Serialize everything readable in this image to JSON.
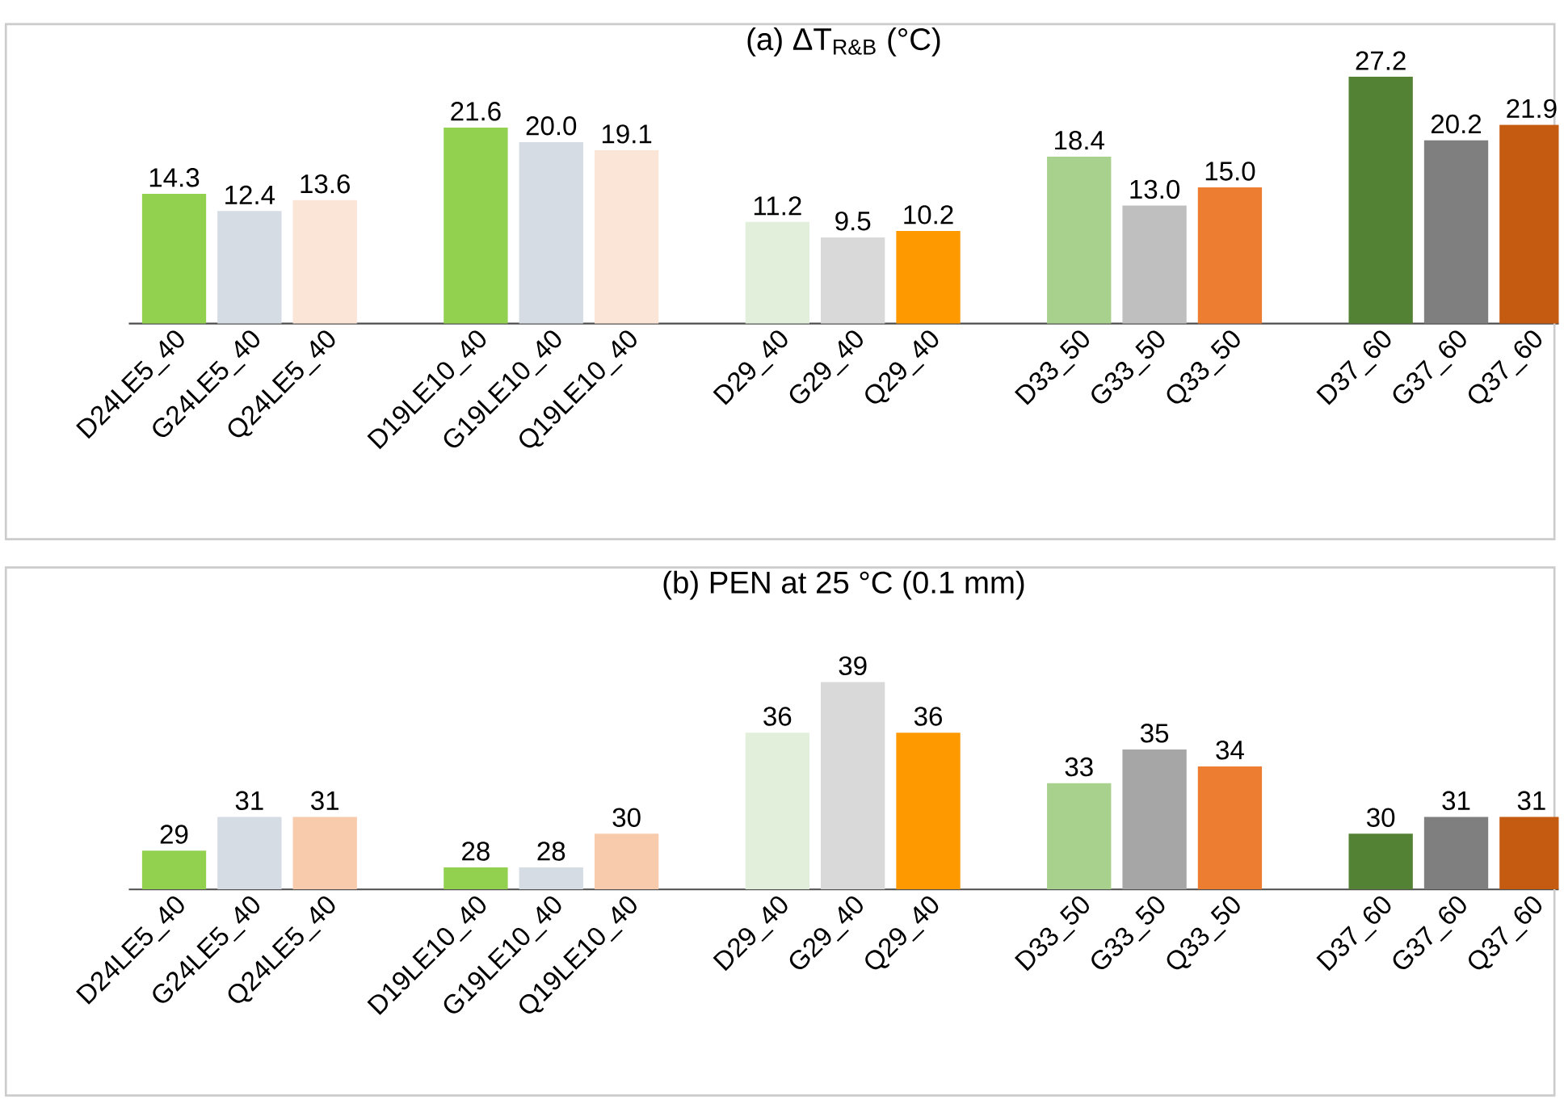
{
  "chart_data": [
    {
      "type": "bar",
      "title": "(a) ΔT$_{R&B}$ (°C)",
      "tick_labels": "x",
      "ylim": [
        0,
        33
      ],
      "categories": [
        "D24LE5_40",
        "G24LE5_40",
        "Q24LE5_40",
        null,
        "D19LE10_40",
        "G19LE10_40",
        "Q19LE10_40",
        null,
        "D29_40",
        "G29_40",
        "Q29_40",
        null,
        "D33_50",
        "G33_50",
        "Q33_50",
        null,
        "D37_60",
        "G37_60",
        "Q37_60"
      ],
      "values": [
        14.3,
        12.4,
        13.6,
        null,
        21.6,
        20.0,
        19.1,
        null,
        11.2,
        9.5,
        10.2,
        null,
        18.4,
        13.0,
        15.0,
        null,
        27.2,
        20.2,
        21.9
      ],
      "value_labels": [
        "14.3",
        "12.4",
        "13.6",
        null,
        "21.6",
        "20.0",
        "19.1",
        null,
        "11.2",
        "9.5",
        "10.2",
        null,
        "18.4",
        "13.0",
        "15.0",
        null,
        "27.2",
        "20.2",
        "21.9"
      ],
      "colors": [
        "#92d050",
        "#d6dce4",
        "#fbe5d6",
        null,
        "#92d050",
        "#d6dce4",
        "#fbe5d6",
        null,
        "#e2efda",
        "#d9d9d9",
        "#ff9900",
        null,
        "#a9d18e",
        "#bfbfbf",
        "#ed7d31",
        null,
        "#548235",
        "#7f7f7f",
        "#c55a11"
      ]
    },
    {
      "type": "bar",
      "title": "(b) PEN at 25 °C (0.1 mm)",
      "tick_labels": "x",
      "ylim": [
        26.7,
        45.8
      ],
      "categories": [
        "D24LE5_40",
        "G24LE5_40",
        "Q24LE5_40",
        null,
        "D19LE10_40",
        "G19LE10_40",
        "Q19LE10_40",
        null,
        "D29_40",
        "G29_40",
        "Q29_40",
        null,
        "D33_50",
        "G33_50",
        "Q33_50",
        null,
        "D37_60",
        "G37_60",
        "Q37_60"
      ],
      "values": [
        29,
        31,
        31,
        null,
        28,
        28,
        30,
        null,
        36,
        39,
        36,
        null,
        33,
        35,
        34,
        null,
        30,
        31,
        31
      ],
      "value_labels": [
        "29",
        "31",
        "31",
        null,
        "28",
        "28",
        "30",
        null,
        "36",
        "39",
        "36",
        null,
        "33",
        "35",
        "34",
        null,
        "30",
        "31",
        "31"
      ],
      "colors": [
        "#92d050",
        "#d6dce4",
        "#f8cbad",
        null,
        "#92d050",
        "#d6dce4",
        "#f8cbad",
        null,
        "#e2efda",
        "#d9d9d9",
        "#ff9900",
        null,
        "#a9d18e",
        "#a6a6a6",
        "#ed7d31",
        null,
        "#548235",
        "#7f7f7f",
        "#c55a11"
      ]
    }
  ]
}
